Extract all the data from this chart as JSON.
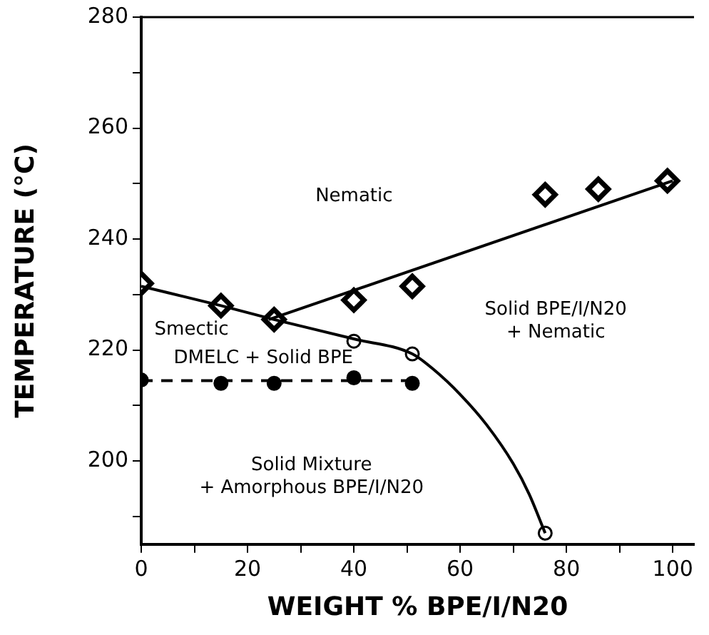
{
  "chart_data": {
    "type": "scatter",
    "xlabel": "WEIGHT % BPE/I/N20",
    "ylabel": "TEMPERATURE (°C)",
    "xlim": [
      0,
      104
    ],
    "ylim": [
      185,
      280
    ],
    "xticks": [
      0,
      {
        "value": 10,
        "label": null
      },
      20,
      {
        "value": 30,
        "label": null
      },
      40,
      {
        "value": 50,
        "label": null
      },
      60,
      {
        "value": 70,
        "label": null
      },
      80,
      {
        "value": 90,
        "label": null
      },
      100
    ],
    "yticks": [
      {
        "value": 190,
        "label": null
      },
      200,
      {
        "value": 210,
        "label": null
      },
      220,
      {
        "value": 230,
        "label": null
      },
      240,
      {
        "value": 250,
        "label": null
      },
      260,
      {
        "value": 270,
        "label": null
      },
      280
    ],
    "grid": false,
    "legend": false,
    "series": [
      {
        "type": "line",
        "color": "#000000",
        "marker": "none",
        "line_style": "solid",
        "x": [
          0,
          15,
          25,
          40,
          51,
          55,
          60,
          65,
          70,
          73,
          76
        ],
        "values": [
          231.5,
          228,
          225.5,
          222,
          219.3,
          216.5,
          212,
          206.5,
          199.5,
          194,
          187
        ]
      },
      {
        "type": "line",
        "color": "#000000",
        "marker": "none",
        "line_style": "solid",
        "x": [
          24,
          100
        ],
        "values": [
          225.5,
          250.5
        ]
      },
      {
        "type": "line",
        "color": "#000000",
        "marker": "none",
        "line_style": "dashed",
        "x": [
          0,
          51
        ],
        "values": [
          214.5,
          214.5
        ]
      },
      {
        "color": "#ffffff",
        "marker": "diamond",
        "x": [
          0,
          15,
          25,
          40,
          51,
          76,
          86,
          99
        ],
        "values": [
          232,
          228,
          225.5,
          229,
          231.5,
          248,
          249,
          250.5
        ]
      },
      {
        "color": "#ffffff",
        "marker": "circle",
        "x": [
          40,
          51,
          76
        ],
        "values": [
          221.6,
          219.3,
          187
        ]
      },
      {
        "color": "#000000",
        "marker": "circle",
        "x": [
          0,
          15,
          25,
          40,
          51
        ],
        "values": [
          214.6,
          214,
          214,
          215,
          214
        ]
      }
    ],
    "annotations": [
      "Nematic",
      "Smectic",
      "DMELC + Solid BPE",
      "Solid BPE/I/N20\n+ Nematic",
      "Solid Mixture\n+ Amorphous BPE/I/N20"
    ]
  }
}
